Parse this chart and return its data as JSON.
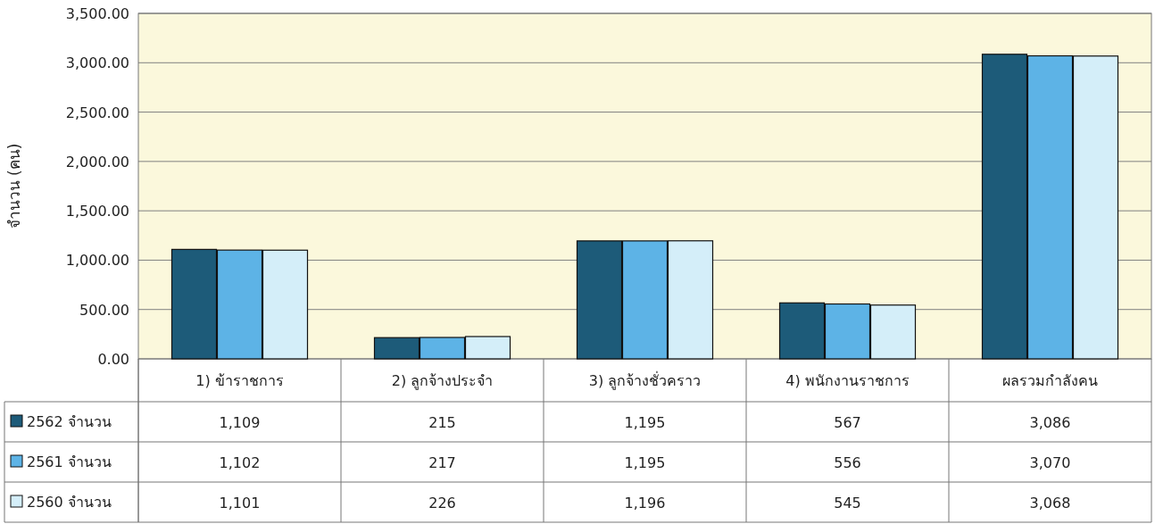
{
  "chart_data": {
    "type": "bar",
    "ylabel": "จำนวน (คน)",
    "categories": [
      "1) ข้าราชการ",
      "2) ลูกจ้างประจำ",
      "3) ลูกจ้างชั่วคราว",
      "4) พนักงานราชการ",
      "ผลรวมกำลังคน"
    ],
    "series": [
      {
        "name": "2562 จำนวน",
        "color": "#1d5b79",
        "values": [
          1109,
          215,
          1195,
          567,
          3086
        ],
        "value_labels": [
          "1,109",
          "215",
          "1,195",
          "567",
          "3,086"
        ]
      },
      {
        "name": "2561 จำนวน",
        "color": "#5db3e6",
        "values": [
          1102,
          217,
          1195,
          556,
          3070
        ],
        "value_labels": [
          "1,102",
          "217",
          "1,195",
          "556",
          "3,070"
        ]
      },
      {
        "name": "2560 จำนวน",
        "color": "#d4eef9",
        "values": [
          1101,
          226,
          1196,
          545,
          3068
        ],
        "value_labels": [
          "1,101",
          "226",
          "1,196",
          "545",
          "3,068"
        ]
      }
    ],
    "ylim": [
      0,
      3500
    ],
    "yticks": [
      {
        "value": 0,
        "label": "0.00"
      },
      {
        "value": 500,
        "label": "500.00"
      },
      {
        "value": 1000,
        "label": "1,000.00"
      },
      {
        "value": 1500,
        "label": "1,500.00"
      },
      {
        "value": 2000,
        "label": "2,000.00"
      },
      {
        "value": 2500,
        "label": "2,500.00"
      },
      {
        "value": 3000,
        "label": "3,000.00"
      },
      {
        "value": 3500,
        "label": "3,500.00"
      }
    ],
    "grid": "y",
    "legend": "bottom left"
  }
}
